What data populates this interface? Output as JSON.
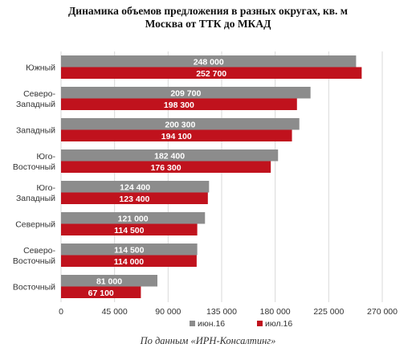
{
  "chart_data": {
    "type": "bar",
    "orientation": "horizontal",
    "title": "Динамика объемов предложения в разных округах, кв. м",
    "subtitle": "Москва от ТТК до МКАД",
    "categories": [
      [
        "Южный"
      ],
      [
        "Северо-",
        "Западный"
      ],
      [
        "Западный"
      ],
      [
        "Юго-",
        "Восточный"
      ],
      [
        "Юго-",
        "Западный"
      ],
      [
        "Северный"
      ],
      [
        "Северо-",
        "Восточный"
      ],
      [
        "Восточный"
      ]
    ],
    "series": [
      {
        "name": "июн.16",
        "color": "#8c8c8c",
        "values": [
          248000,
          209700,
          200300,
          182400,
          124400,
          121000,
          114500,
          81000
        ],
        "labels": [
          "248 000",
          "209 700",
          "200 300",
          "182 400",
          "124 400",
          "121 000",
          "114 500",
          "81 000"
        ]
      },
      {
        "name": "июл.16",
        "color": "#c0121d",
        "values": [
          252700,
          198300,
          194100,
          176300,
          123400,
          114500,
          114000,
          67100
        ],
        "labels": [
          "252 700",
          "198 300",
          "194 100",
          "176 300",
          "123 400",
          "114 500",
          "114 000",
          "67 100"
        ]
      }
    ],
    "xlim": [
      0,
      270000
    ],
    "xticks": [
      0,
      45000,
      90000,
      135000,
      180000,
      225000,
      270000
    ],
    "xtick_labels": [
      "0",
      "45 000",
      "90 000",
      "135 000",
      "180 000",
      "225 000",
      "270 000"
    ],
    "grid": true,
    "legend_position": "bottom"
  },
  "source_note": "По данным «ИРН-Консалтинг»"
}
